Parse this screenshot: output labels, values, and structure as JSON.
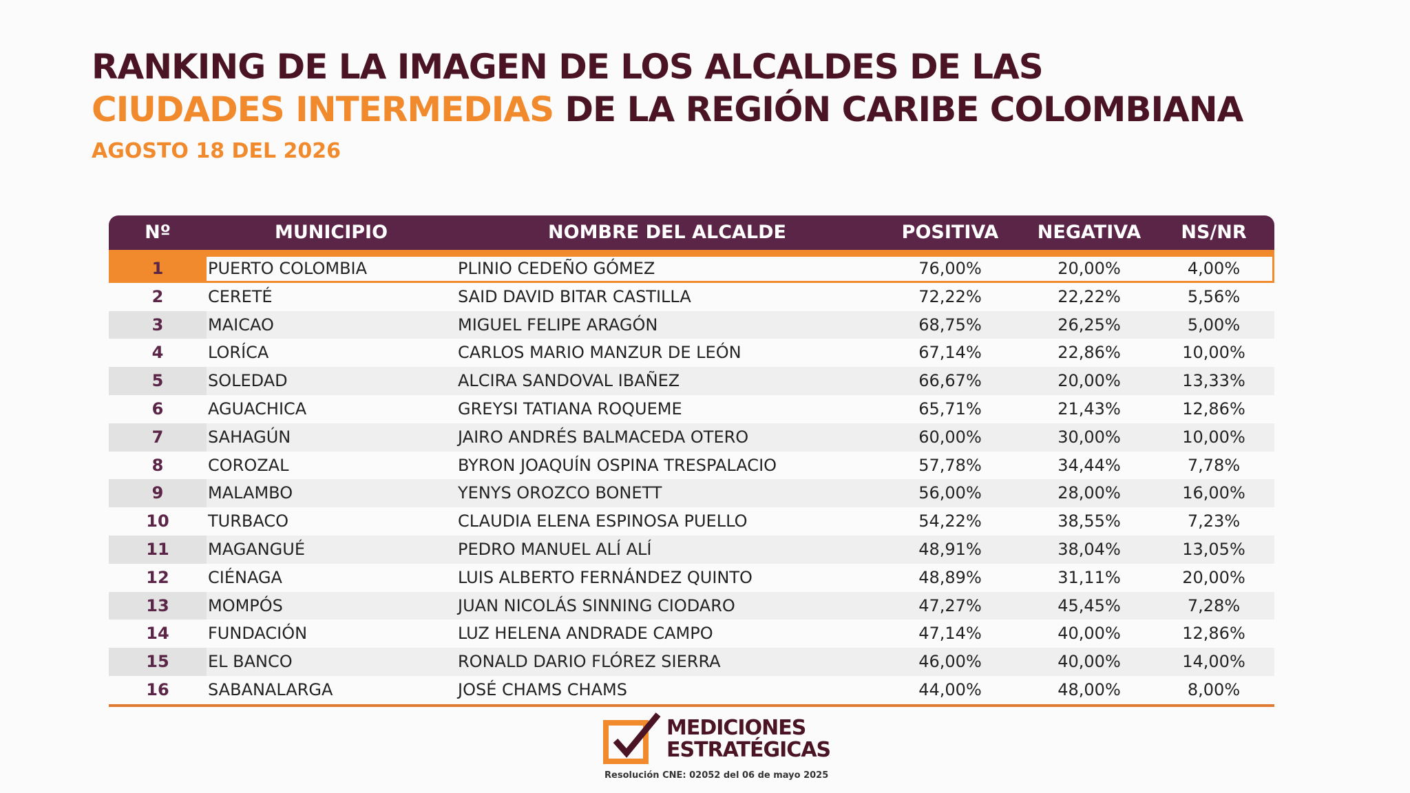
{
  "header": {
    "title_line1": "RANKING DE LA IMAGEN DE LOS ALCALDES DE LAS",
    "title_highlight": "CIUDADES INTERMEDIAS",
    "title_line2": "DE LA REGIÓN CARIBE COLOMBIANA",
    "subtitle": "AGOSTO 18 DEL 2026"
  },
  "table": {
    "columns": [
      "Nº",
      "MUNICIPIO",
      "NOMBRE DEL ALCALDE",
      "POSITIVA",
      "NEGATIVA",
      "NS/NR"
    ],
    "rows": [
      [
        "1",
        "PUERTO COLOMBIA",
        "PLINIO CEDEÑO GÓMEZ",
        "76,00%",
        "20,00%",
        "4,00%"
      ],
      [
        "2",
        "CERETÉ",
        "SAID DAVID BITAR CASTILLA",
        "72,22%",
        "22,22%",
        "5,56%"
      ],
      [
        "3",
        "MAICAO",
        "MIGUEL FELIPE ARAGÓN",
        "68,75%",
        "26,25%",
        "5,00%"
      ],
      [
        "4",
        "LORÍCA",
        "CARLOS MARIO MANZUR DE LEÓN",
        "67,14%",
        "22,86%",
        "10,00%"
      ],
      [
        "5",
        "SOLEDAD",
        "ALCIRA SANDOVAL IBAÑEZ",
        "66,67%",
        "20,00%",
        "13,33%"
      ],
      [
        "6",
        "AGUACHICA",
        "GREYSI TATIANA ROQUEME",
        "65,71%",
        "21,43%",
        "12,86%"
      ],
      [
        "7",
        "SAHAGÚN",
        "JAIRO ANDRÉS BALMACEDA OTERO",
        "60,00%",
        "30,00%",
        "10,00%"
      ],
      [
        "8",
        "COROZAL",
        "BYRON JOAQUÍN OSPINA TRESPALACIO",
        "57,78%",
        "34,44%",
        "7,78%"
      ],
      [
        "9",
        "MALAMBO",
        "YENYS OROZCO BONETT",
        "56,00%",
        "28,00%",
        "16,00%"
      ],
      [
        "10",
        "TURBACO",
        "CLAUDIA ELENA ESPINOSA PUELLO",
        "54,22%",
        "38,55%",
        "7,23%"
      ],
      [
        "11",
        "MAGANGUÉ",
        "PEDRO MANUEL ALÍ ALÍ",
        "48,91%",
        "38,04%",
        "13,05%"
      ],
      [
        "12",
        "CIÉNAGA",
        "LUIS ALBERTO FERNÁNDEZ QUINTO",
        "48,89%",
        "31,11%",
        "20,00%"
      ],
      [
        "13",
        "MOMPÓS",
        "JUAN NICOLÁS SINNING CIODARO",
        "47,27%",
        "45,45%",
        "7,28%"
      ],
      [
        "14",
        "FUNDACIÓN",
        "LUZ HELENA ANDRADE CAMPO",
        "47,14%",
        "40,00%",
        "12,86%"
      ],
      [
        "15",
        "EL BANCO",
        "RONALD DARIO FLÓREZ SIERRA",
        "46,00%",
        "40,00%",
        "14,00%"
      ],
      [
        "16",
        "SABANALARGA",
        "JOSÉ CHAMS CHAMS",
        "44,00%",
        "48,00%",
        "8,00%"
      ]
    ]
  },
  "footer": {
    "logo_line1": "MEDICIONES",
    "logo_line2": "ESTRATÉGICAS",
    "resolution": "Resolución CNE: 02052 del 06 de mayo 2025"
  }
}
